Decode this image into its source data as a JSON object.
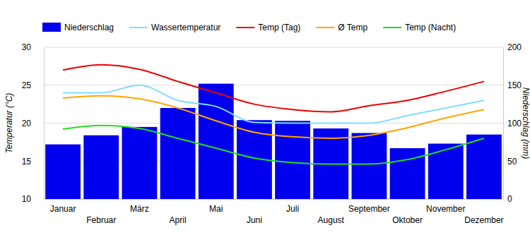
{
  "chart_data": {
    "type": "bar",
    "y_label": "Temperatur (°C)",
    "y2_label": "Niederschlag (mm)",
    "categories": [
      "Januar",
      "Februar",
      "März",
      "April",
      "Mai",
      "Juni",
      "Juli",
      "August",
      "September",
      "Oktober",
      "November",
      "Dezember"
    ],
    "series": [
      {
        "name": "Niederschlag",
        "type": "bar",
        "axis": "y2",
        "color": "#0000ee",
        "values": [
          72,
          84,
          95,
          120,
          152,
          104,
          103,
          93,
          87,
          67,
          73,
          85
        ]
      },
      {
        "name": "Wassertemperatur",
        "type": "line",
        "color": "#80dcff",
        "values": [
          24.0,
          24.0,
          25.0,
          23.0,
          22.2,
          20.1,
          20.0,
          20.0,
          20.0,
          21.0,
          22.0,
          23.0
        ]
      },
      {
        "name": "Temp (Tag)",
        "type": "line",
        "color": "#ee0000",
        "values": [
          27.0,
          27.7,
          27.1,
          25.5,
          24.0,
          22.5,
          21.8,
          21.5,
          22.3,
          23.0,
          24.2,
          25.5
        ]
      },
      {
        "name": "Ø Temp",
        "type": "line",
        "color": "#ffa500",
        "values": [
          23.3,
          23.6,
          23.2,
          22.0,
          20.3,
          18.8,
          18.2,
          18.0,
          18.4,
          19.4,
          20.7,
          21.8
        ]
      },
      {
        "name": "Temp (Nacht)",
        "type": "line",
        "color": "#22dd22",
        "values": [
          19.2,
          19.7,
          19.3,
          18.0,
          16.7,
          15.4,
          14.8,
          14.6,
          14.6,
          15.2,
          16.5,
          18.0
        ]
      }
    ],
    "ylim": [
      10,
      30
    ],
    "yticks": [
      10,
      15,
      20,
      25,
      30
    ],
    "y2lim": [
      0,
      200
    ],
    "y2ticks": [
      0,
      50,
      100,
      150,
      200
    ],
    "grid": true,
    "legend": "top"
  }
}
